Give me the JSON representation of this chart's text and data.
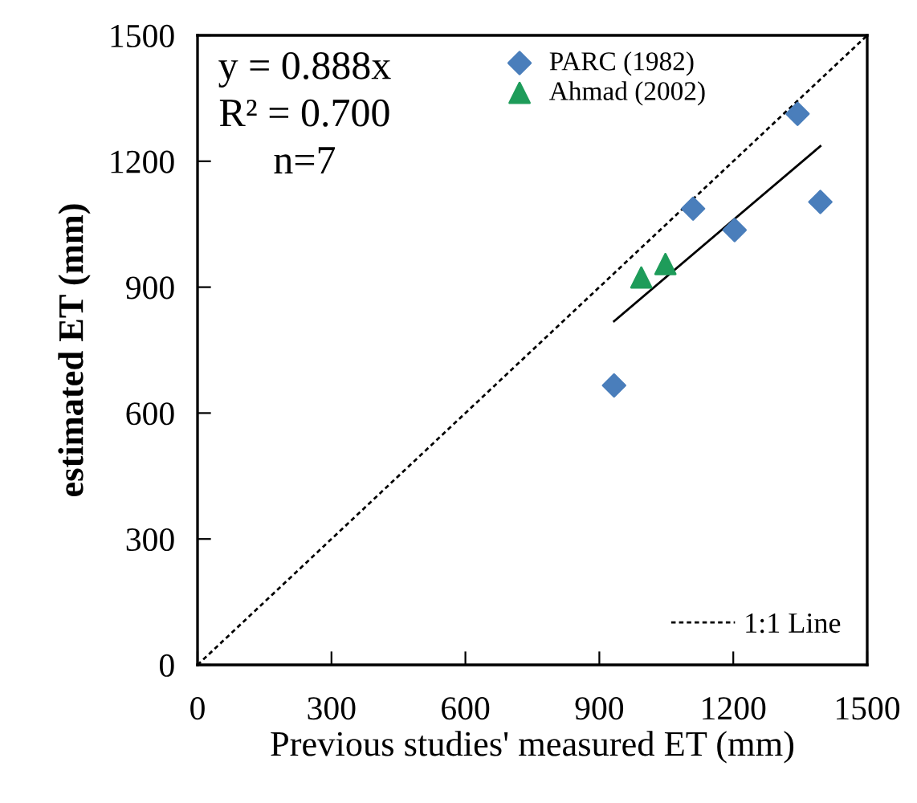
{
  "chart_data": {
    "type": "scatter",
    "xlabel": "Previous studies' measured ET (mm)",
    "ylabel": "estimated ET (mm)",
    "xlim": [
      0,
      1500
    ],
    "ylim": [
      0,
      1500
    ],
    "xticks": [
      0,
      300,
      600,
      900,
      1200,
      1500
    ],
    "yticks": [
      0,
      300,
      600,
      900,
      1200,
      1500
    ],
    "grid": false,
    "legend": "top",
    "annotations": [
      "y = 0.888x",
      "R² = 0.700",
      "n=7"
    ],
    "series": [
      {
        "name": "PARC (1982)",
        "color": "#4a7ebb",
        "marker": "diamond",
        "x": [
          933,
          1110,
          1203,
          1344,
          1395
        ],
        "values": [
          666,
          1087,
          1036,
          1313,
          1103
        ]
      },
      {
        "name": "Ahmad (2002)",
        "color": "#1e9c5a",
        "marker": "triangle",
        "x": [
          994,
          1048
        ],
        "values": [
          923,
          955
        ]
      },
      {
        "type": "line",
        "color": "#000000",
        "x": [
          933,
          1395
        ],
        "values": [
          819,
          1236
        ],
        "marker": "none",
        "line_style": "solid"
      },
      {
        "type": "line",
        "name": "1:1 Line",
        "color": "#000000",
        "x": [
          0,
          1500
        ],
        "values": [
          0,
          1500
        ],
        "marker": "none",
        "line_style": "dashed"
      }
    ]
  }
}
